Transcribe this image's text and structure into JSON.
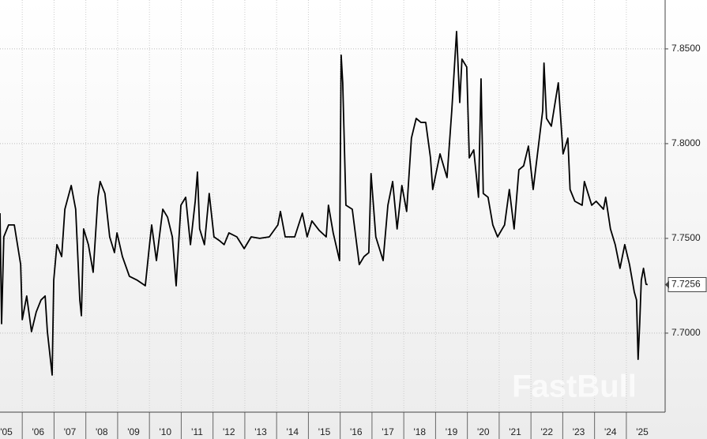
{
  "chart_data": {
    "type": "line",
    "watermark": "FastBull",
    "last_value_label": "7.7256",
    "color": "#000000",
    "grid": true,
    "xlim": [
      2005.3,
      2026.22
    ],
    "ylim": [
      7.6583,
      7.8758
    ],
    "yticks": [
      {
        "value": 7.7,
        "label": "7.7000"
      },
      {
        "value": 7.75,
        "label": "7.7500"
      },
      {
        "value": 7.8,
        "label": "7.8000"
      },
      {
        "value": 7.85,
        "label": "7.8500"
      }
    ],
    "xticks": [
      {
        "value": 2005,
        "label": "'05"
      },
      {
        "value": 2006,
        "label": "'06"
      },
      {
        "value": 2007,
        "label": "'07"
      },
      {
        "value": 2008,
        "label": "'08"
      },
      {
        "value": 2009,
        "label": "'09"
      },
      {
        "value": 2010,
        "label": "'10"
      },
      {
        "value": 2011,
        "label": "'11"
      },
      {
        "value": 2012,
        "label": "'12"
      },
      {
        "value": 2013,
        "label": "'13"
      },
      {
        "value": 2014,
        "label": "'14"
      },
      {
        "value": 2015,
        "label": "'15"
      },
      {
        "value": 2016,
        "label": "'16"
      },
      {
        "value": 2017,
        "label": "'17"
      },
      {
        "value": 2018,
        "label": "'18"
      },
      {
        "value": 2019,
        "label": "'19"
      },
      {
        "value": 2020,
        "label": "'20"
      },
      {
        "value": 2021,
        "label": "'21"
      },
      {
        "value": 2022,
        "label": "'22"
      },
      {
        "value": 2023,
        "label": "'23"
      },
      {
        "value": 2024,
        "label": "'24"
      },
      {
        "value": 2025,
        "label": "'25"
      }
    ],
    "x": [
      2005.3,
      2005.35,
      2005.42,
      2005.57,
      2005.75,
      2005.95,
      2006.0,
      2006.14,
      2006.29,
      2006.44,
      2006.59,
      2006.72,
      2006.79,
      2006.94,
      2006.99,
      2007.09,
      2007.24,
      2007.34,
      2007.54,
      2007.68,
      2007.81,
      2007.86,
      2007.93,
      2008.08,
      2008.23,
      2008.38,
      2008.45,
      2008.6,
      2008.75,
      2008.9,
      2008.98,
      2009.15,
      2009.37,
      2009.62,
      2009.87,
      2009.99,
      2010.07,
      2010.22,
      2010.42,
      2010.57,
      2010.72,
      2010.84,
      2010.99,
      2011.14,
      2011.29,
      2011.44,
      2011.51,
      2011.58,
      2011.73,
      2011.88,
      2012.03,
      2012.21,
      2012.35,
      2012.5,
      2012.75,
      2012.98,
      2013.2,
      2013.47,
      2013.77,
      2014.04,
      2014.12,
      2014.27,
      2014.57,
      2014.81,
      2014.96,
      2015.11,
      2015.34,
      2015.56,
      2015.63,
      2015.78,
      2015.98,
      2016.03,
      2016.08,
      2016.18,
      2016.38,
      2016.6,
      2016.75,
      2016.9,
      2016.97,
      2017.12,
      2017.35,
      2017.5,
      2017.65,
      2017.79,
      2017.94,
      2018.09,
      2018.24,
      2018.39,
      2018.54,
      2018.69,
      2018.84,
      2018.91,
      2019.14,
      2019.36,
      2019.51,
      2019.66,
      2019.76,
      2019.83,
      2019.98,
      2020.06,
      2020.2,
      2020.35,
      2020.43,
      2020.5,
      2020.65,
      2020.8,
      2020.95,
      2021.17,
      2021.32,
      2021.47,
      2021.62,
      2021.77,
      2021.92,
      2022.07,
      2022.22,
      2022.37,
      2022.41,
      2022.49,
      2022.64,
      2022.86,
      2023.01,
      2023.16,
      2023.23,
      2023.38,
      2023.61,
      2023.68,
      2023.91,
      2024.05,
      2024.28,
      2024.35,
      2024.5,
      2024.65,
      2024.8,
      2024.95,
      2025.1,
      2025.25,
      2025.32,
      2025.37,
      2025.42,
      2025.47,
      2025.54,
      2025.62,
      2025.67
    ],
    "values": [
      7.7633,
      7.705,
      7.7508,
      7.7571,
      7.7571,
      7.7362,
      7.7071,
      7.7196,
      7.7008,
      7.7112,
      7.7175,
      7.7196,
      7.7008,
      7.6779,
      7.7279,
      7.7467,
      7.7404,
      7.7654,
      7.7779,
      7.7654,
      7.7175,
      7.7092,
      7.755,
      7.7467,
      7.7321,
      7.7717,
      7.78,
      7.7737,
      7.7508,
      7.7425,
      7.7529,
      7.7404,
      7.73,
      7.7279,
      7.725,
      7.7446,
      7.7571,
      7.7383,
      7.7654,
      7.7612,
      7.7508,
      7.725,
      7.7675,
      7.7717,
      7.7467,
      7.7696,
      7.785,
      7.755,
      7.7467,
      7.7737,
      7.7508,
      7.7487,
      7.7467,
      7.7529,
      7.7508,
      7.7446,
      7.7508,
      7.75,
      7.7508,
      7.7571,
      7.7642,
      7.7508,
      7.7508,
      7.7633,
      7.7508,
      7.7592,
      7.7542,
      7.7508,
      7.7675,
      7.7529,
      7.7383,
      7.8467,
      7.8321,
      7.7675,
      7.7654,
      7.7362,
      7.7404,
      7.7425,
      7.7842,
      7.7508,
      7.7383,
      7.7675,
      7.78,
      7.755,
      7.7779,
      7.7642,
      7.8029,
      7.8133,
      7.8112,
      7.8112,
      7.7925,
      7.7758,
      7.7946,
      7.7821,
      7.8175,
      7.8592,
      7.8217,
      7.8446,
      7.8404,
      7.7925,
      7.7967,
      7.7717,
      7.8342,
      7.7737,
      7.7717,
      7.7571,
      7.7508,
      7.7571,
      7.7758,
      7.755,
      7.7862,
      7.7883,
      7.7987,
      7.7758,
      7.7967,
      7.8175,
      7.8425,
      7.8133,
      7.8092,
      7.8321,
      7.7946,
      7.8029,
      7.7758,
      7.7696,
      7.7675,
      7.78,
      7.7675,
      7.7696,
      7.7654,
      7.7717,
      7.755,
      7.7467,
      7.7342,
      7.7467,
      7.7362,
      7.7217,
      7.7175,
      7.6862,
      7.705,
      7.7279,
      7.7342,
      7.7258,
      7.7256
    ]
  }
}
